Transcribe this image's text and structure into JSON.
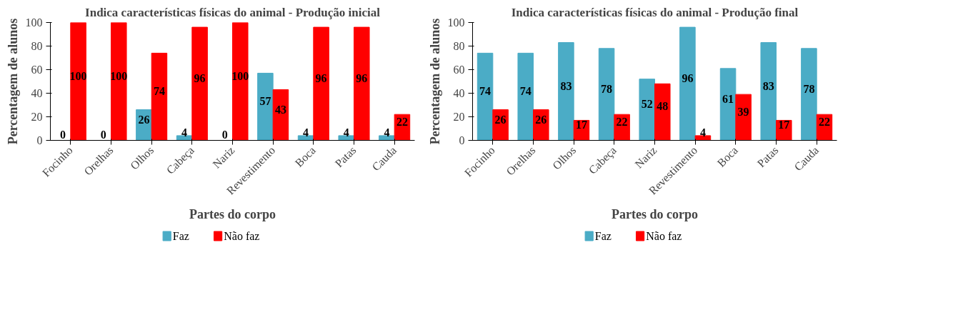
{
  "chart_data": [
    {
      "type": "bar",
      "title": "Indica características físicas do animal - Produção inicial",
      "xlabel": "Partes do corpo",
      "ylabel": "Percentagem de alunos",
      "categories": [
        "Focinho",
        "Orelhas",
        "Olhos",
        "Cabeça",
        "Nariz",
        "Revestimento",
        "Boca",
        "Patas",
        "Cauda"
      ],
      "ylim": [
        0,
        100
      ],
      "yticks": [
        0,
        20,
        40,
        60,
        80,
        100
      ],
      "legend": "bottom",
      "data_labels": true,
      "series": [
        {
          "name": "Faz",
          "color": "#4bacc6",
          "values": [
            0,
            0,
            26,
            4,
            0,
            57,
            4,
            4,
            4
          ]
        },
        {
          "name": "Não faz",
          "color": "#ff0000",
          "values": [
            100,
            100,
            74,
            96,
            100,
            43,
            96,
            96,
            22
          ]
        }
      ]
    },
    {
      "type": "bar",
      "title": "Indica características físicas do animal - Produção final",
      "xlabel": "Partes do corpo",
      "ylabel": "Percentagem de alunos",
      "categories": [
        "Focinho",
        "Orelhas",
        "Olhos",
        "Cabeça",
        "Nariz",
        "Revestimento",
        "Boca",
        "Patas",
        "Cauda"
      ],
      "ylim": [
        0,
        100
      ],
      "yticks": [
        0,
        20,
        40,
        60,
        80,
        100
      ],
      "legend": "bottom",
      "data_labels": true,
      "series": [
        {
          "name": "Faz",
          "color": "#4bacc6",
          "values": [
            74,
            74,
            83,
            78,
            52,
            96,
            61,
            83,
            78
          ]
        },
        {
          "name": "Não faz",
          "color": "#ff0000",
          "values": [
            26,
            26,
            17,
            22,
            48,
            4,
            39,
            17,
            22
          ]
        }
      ]
    }
  ]
}
